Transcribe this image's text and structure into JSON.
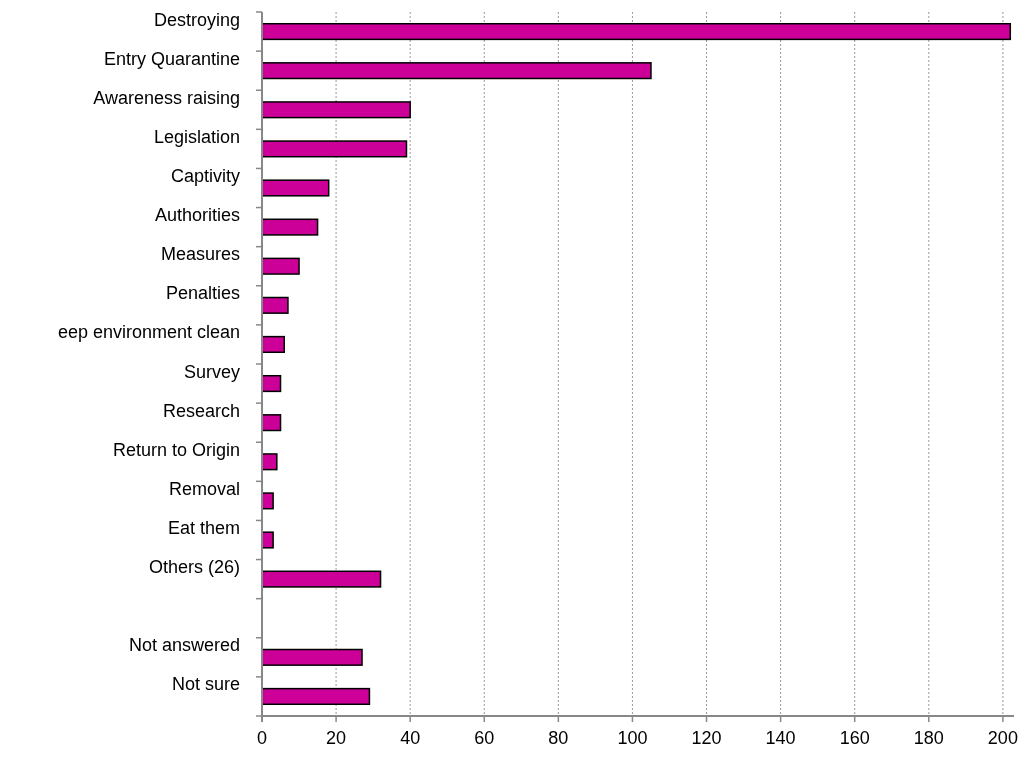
{
  "chart_data": {
    "type": "bar",
    "orientation": "horizontal",
    "categories": [
      "Destroying",
      "Entry Quarantine",
      "Awareness raising",
      "Legislation",
      "Captivity",
      "Authorities",
      "Measures",
      "Penalties",
      "eep environment clean",
      "Survey",
      "Research",
      "Return to Origin",
      "Removal",
      "Eat them",
      "Others (26)",
      null,
      "Not answered",
      "Not sure"
    ],
    "values": [
      202,
      105,
      40,
      39,
      18,
      15,
      10,
      7,
      6,
      5,
      5,
      4,
      3,
      3,
      32,
      null,
      27,
      29
    ],
    "color": "#cc0099",
    "xlim": [
      0,
      203
    ],
    "xticks": [
      0,
      20,
      40,
      60,
      80,
      100,
      120,
      140,
      160,
      180,
      200
    ],
    "grid": "x"
  }
}
